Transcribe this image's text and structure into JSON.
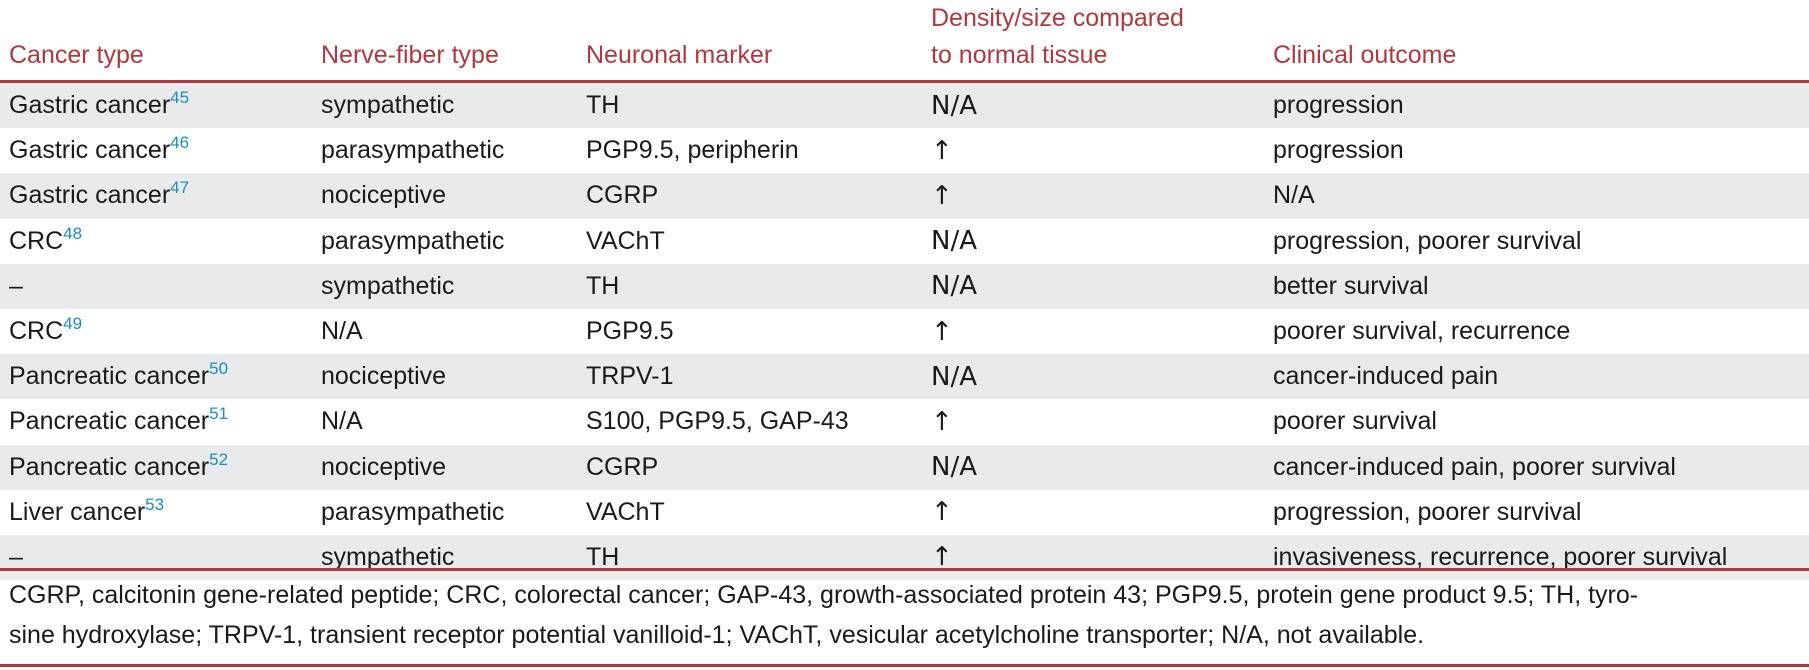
{
  "headers": [
    "Cancer type",
    "Nerve-fiber type",
    "Neuronal marker",
    "Density/size compared to normal tissue",
    "Clinical outcome"
  ],
  "header_line4a": "Density/size compared",
  "header_line4b": "to normal tissue",
  "rows": [
    {
      "cancer": "Gastric cancer",
      "ref": "45",
      "fiber": "sympathetic",
      "marker": "TH",
      "density": "N/A",
      "outcome": "progression"
    },
    {
      "cancer": "Gastric cancer",
      "ref": "46",
      "fiber": "parasympathetic",
      "marker": "PGP9.5, peripherin",
      "density": "↑",
      "outcome": "progression"
    },
    {
      "cancer": "Gastric cancer",
      "ref": "47",
      "fiber": "nociceptive",
      "marker": "CGRP",
      "density": "↑",
      "outcome": "N/A"
    },
    {
      "cancer": "CRC",
      "ref": "48",
      "fiber": "parasympathetic",
      "marker": "VAChT",
      "density": "N/A",
      "outcome": "progression, poorer survival"
    },
    {
      "cancer": "–",
      "ref": "",
      "fiber": "sympathetic",
      "marker": "TH",
      "density": "N/A",
      "outcome": "better survival"
    },
    {
      "cancer": "CRC",
      "ref": "49",
      "fiber": "N/A",
      "marker": "PGP9.5",
      "density": "↑",
      "outcome": "poorer survival, recurrence"
    },
    {
      "cancer": "Pancreatic cancer",
      "ref": "50",
      "fiber": "nociceptive",
      "marker": "TRPV-1",
      "density": "N/A",
      "outcome": "cancer-induced pain"
    },
    {
      "cancer": "Pancreatic cancer",
      "ref": "51",
      "fiber": "N/A",
      "marker": "S100, PGP9.5, GAP-43",
      "density": "↑",
      "outcome": "poorer survival"
    },
    {
      "cancer": "Pancreatic cancer",
      "ref": "52",
      "fiber": "nociceptive",
      "marker": "CGRP",
      "density": "N/A",
      "outcome": "cancer-induced pain, poorer survival"
    },
    {
      "cancer": "Liver cancer",
      "ref": "53",
      "fiber": "parasympathetic",
      "marker": "VAChT",
      "density": "↑",
      "outcome": "progression, poorer survival"
    },
    {
      "cancer": "–",
      "ref": "",
      "fiber": "sympathetic",
      "marker": "TH",
      "density": "↑",
      "outcome": "invasiveness, recurrence, poorer survival"
    }
  ],
  "footnote_line1": "CGRP, calcitonin gene-related peptide; CRC, colorectal cancer; GAP-43, growth-associated protein 43; PGP9.5, protein gene product 9.5; TH, tyro-",
  "footnote_line2": "sine hydroxylase; TRPV-1, transient receptor potential vanilloid-1; VAChT, vesicular acetylcholine transporter; N/A, not available."
}
